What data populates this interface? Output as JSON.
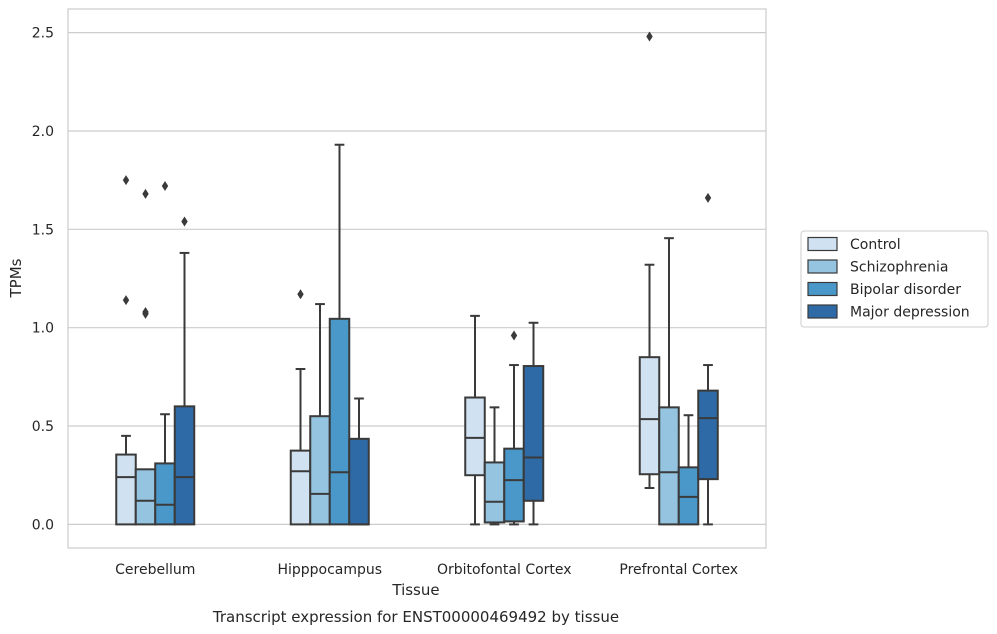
{
  "chart_data": {
    "type": "box",
    "xlabel": "Tissue",
    "ylabel": "TPMs",
    "caption": "Transcript expression for ENST00000469492 by tissue",
    "categories": [
      "Cerebellum",
      "Hipppocampus",
      "Orbitofontal Cortex",
      "Prefrontal Cortex"
    ],
    "yticks": [
      "0.0",
      "0.5",
      "1.0",
      "1.5",
      "2.0",
      "2.5"
    ],
    "ylim": [
      -0.12,
      2.62
    ],
    "grid": "horizontal",
    "legend_position": "right",
    "series": [
      {
        "name": "Control",
        "color": "#d0e1f2",
        "boxes": [
          {
            "q1": 0.0,
            "median": 0.24,
            "q3": 0.355,
            "whisker_low": 0.0,
            "whisker_high": 0.45,
            "outliers": [
              1.14,
              1.75
            ]
          },
          {
            "q1": 0.0,
            "median": 0.27,
            "q3": 0.375,
            "whisker_low": 0.0,
            "whisker_high": 0.79,
            "outliers": [
              1.17
            ]
          },
          {
            "q1": 0.25,
            "median": 0.44,
            "q3": 0.645,
            "whisker_low": 0.0,
            "whisker_high": 1.06,
            "outliers": []
          },
          {
            "q1": 0.255,
            "median": 0.535,
            "q3": 0.85,
            "whisker_low": 0.185,
            "whisker_high": 1.32,
            "outliers": [
              2.48
            ]
          }
        ]
      },
      {
        "name": "Schizophrenia",
        "color": "#94c4df",
        "boxes": [
          {
            "q1": 0.0,
            "median": 0.12,
            "q3": 0.28,
            "whisker_low": 0.0,
            "whisker_high": 0.28,
            "outliers": [
              1.07,
              1.08,
              1.68
            ]
          },
          {
            "q1": 0.0,
            "median": 0.155,
            "q3": 0.55,
            "whisker_low": 0.0,
            "whisker_high": 1.12,
            "outliers": []
          },
          {
            "q1": 0.01,
            "median": 0.115,
            "q3": 0.315,
            "whisker_low": 0.0,
            "whisker_high": 0.595,
            "outliers": []
          },
          {
            "q1": 0.0,
            "median": 0.265,
            "q3": 0.595,
            "whisker_low": 0.0,
            "whisker_high": 1.455,
            "outliers": []
          }
        ]
      },
      {
        "name": "Bipolar disorder",
        "color": "#4a98c9",
        "boxes": [
          {
            "q1": 0.0,
            "median": 0.1,
            "q3": 0.31,
            "whisker_low": 0.0,
            "whisker_high": 0.56,
            "outliers": [
              1.72
            ]
          },
          {
            "q1": 0.0,
            "median": 0.265,
            "q3": 1.045,
            "whisker_low": 0.0,
            "whisker_high": 1.93,
            "outliers": []
          },
          {
            "q1": 0.015,
            "median": 0.225,
            "q3": 0.385,
            "whisker_low": 0.0,
            "whisker_high": 0.81,
            "outliers": [
              0.96
            ]
          },
          {
            "q1": 0.0,
            "median": 0.14,
            "q3": 0.29,
            "whisker_low": 0.0,
            "whisker_high": 0.555,
            "outliers": []
          }
        ]
      },
      {
        "name": "Major depression",
        "color": "#2e6aa5",
        "boxes": [
          {
            "q1": 0.0,
            "median": 0.24,
            "q3": 0.6,
            "whisker_low": 0.0,
            "whisker_high": 1.38,
            "outliers": [
              1.54
            ]
          },
          {
            "q1": 0.0,
            "median": 0.0,
            "q3": 0.435,
            "whisker_low": 0.0,
            "whisker_high": 0.64,
            "outliers": []
          },
          {
            "q1": 0.12,
            "median": 0.34,
            "q3": 0.805,
            "whisker_low": 0.0,
            "whisker_high": 1.025,
            "outliers": []
          },
          {
            "q1": 0.23,
            "median": 0.54,
            "q3": 0.68,
            "whisker_low": 0.0,
            "whisker_high": 0.81,
            "outliers": [
              1.66
            ]
          }
        ]
      }
    ]
  }
}
